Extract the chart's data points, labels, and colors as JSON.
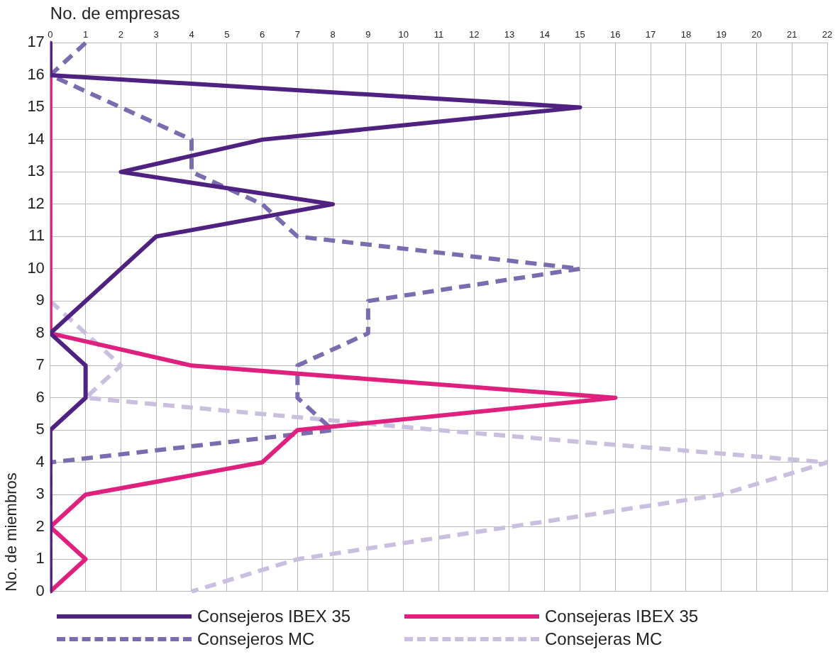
{
  "chart_data": {
    "type": "line",
    "orientation": "horizontal",
    "xlabel": "No. de empresas",
    "ylabel": "No. de miembros",
    "categories": [
      "17",
      "16",
      "15",
      "14",
      "13",
      "12",
      "11",
      "10",
      "9",
      "8",
      "7",
      "6",
      "5",
      "4",
      "3",
      "2",
      "1",
      "0"
    ],
    "xlim": [
      0,
      22
    ],
    "xticks": [
      0,
      1,
      2,
      3,
      4,
      5,
      6,
      7,
      8,
      9,
      10,
      11,
      12,
      13,
      14,
      15,
      16,
      17,
      18,
      19,
      20,
      21,
      22
    ],
    "grid": true,
    "legend": "bottom",
    "marker": "none",
    "series": [
      {
        "name": "Consejeros IBEX 35",
        "color": "#4f2180",
        "line_style": "solid",
        "values": [
          0,
          0,
          15,
          6,
          2,
          8,
          3,
          2,
          1,
          0,
          1,
          1,
          0,
          0,
          0,
          0,
          0,
          0
        ]
      },
      {
        "name": "Consejeras IBEX 35",
        "color": "#e0207f",
        "line_style": "solid",
        "values": [
          0,
          0,
          0,
          0,
          0,
          0,
          0,
          0,
          0,
          0,
          4,
          16,
          7,
          6,
          1,
          0,
          1,
          0
        ]
      },
      {
        "name": "Consejeros MC",
        "color": "#7b6cb0",
        "line_style": "dashed",
        "values": [
          1,
          0,
          2,
          4,
          4,
          6,
          7,
          15,
          9,
          9,
          7,
          7,
          8,
          0,
          0,
          0,
          0,
          0
        ]
      },
      {
        "name": "Consejeras MC",
        "color": "#cbbfdf",
        "line_style": "dashed",
        "values": [
          0,
          0,
          0,
          0,
          0,
          0,
          0,
          0,
          0,
          1,
          2,
          1,
          11,
          22,
          19,
          13,
          7,
          4
        ]
      }
    ]
  }
}
